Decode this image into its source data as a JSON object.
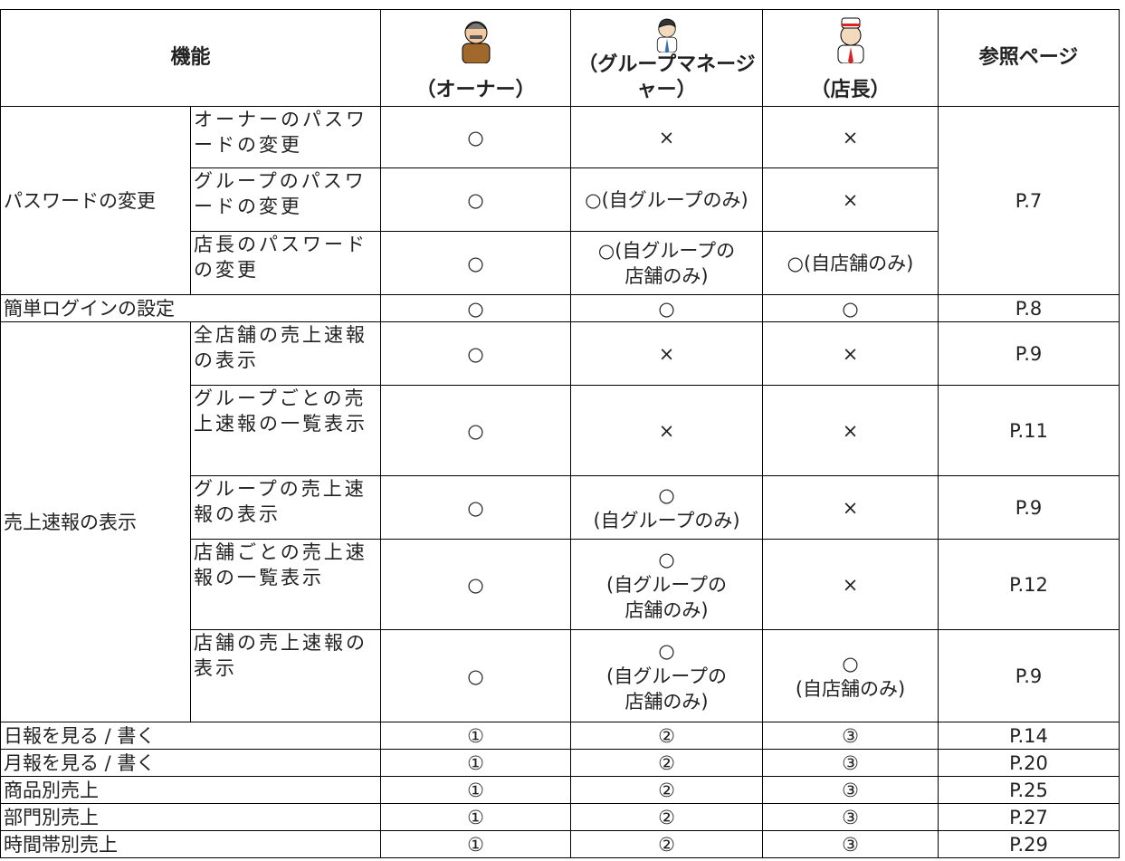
{
  "header": {
    "function": "機能",
    "roles": [
      "（オーナー）",
      "（グループマネージャー）",
      "（店長）"
    ],
    "reference": "参照ページ"
  },
  "sections": [
    {
      "label": "パスワードの変更",
      "page": "P.7",
      "items": [
        {
          "name": "オーナーのパスワードの変更",
          "cells": [
            "○",
            "×",
            "×"
          ]
        },
        {
          "name": "グループのパスワードの変更",
          "cells": [
            "○",
            "○(自グループのみ)",
            "×"
          ]
        },
        {
          "name": "店長のパスワードの変更",
          "cells": [
            "○",
            "○(自グループの\n店舗のみ)",
            "○(自店舗のみ)"
          ]
        }
      ]
    },
    {
      "label": "簡単ログインの設定",
      "page": "P.8",
      "cells": [
        "○",
        "○",
        "○"
      ]
    },
    {
      "label": "売上速報の表示",
      "items": [
        {
          "name": "全店舗の売上速報の表示",
          "cells": [
            "○",
            "×",
            "×"
          ],
          "page": "P.9"
        },
        {
          "name": "グループごとの売上速報の一覧表示",
          "cells": [
            "○",
            "×",
            "×"
          ],
          "page": "P.11"
        },
        {
          "name": "グループの売上速報の表示",
          "cells": [
            "○",
            "○\n(自グループのみ)",
            "×"
          ],
          "page": "P.9"
        },
        {
          "name": "店舗ごとの売上速報の一覧表示",
          "cells": [
            "○",
            "○\n(自グループの\n店舗のみ)",
            "×"
          ],
          "page": "P.12"
        },
        {
          "name": "店舗の売上速報の表示",
          "cells": [
            "○",
            "○\n(自グループの\n店舗のみ)",
            "○\n(自店舗のみ)"
          ],
          "page": "P.9"
        }
      ]
    },
    {
      "label": "日報を見る / 書く",
      "page": "P.14",
      "cells": [
        "①",
        "②",
        "③"
      ]
    },
    {
      "label": "月報を見る / 書く",
      "page": "P.20",
      "cells": [
        "①",
        "②",
        "③"
      ]
    },
    {
      "label": "商品別売上",
      "page": "P.25",
      "cells": [
        "①",
        "②",
        "③"
      ]
    },
    {
      "label": "部門別売上",
      "page": "P.27",
      "cells": [
        "①",
        "②",
        "③"
      ]
    },
    {
      "label": "時間帯別売上",
      "page": "P.29",
      "cells": [
        "①",
        "②",
        "③"
      ]
    }
  ]
}
